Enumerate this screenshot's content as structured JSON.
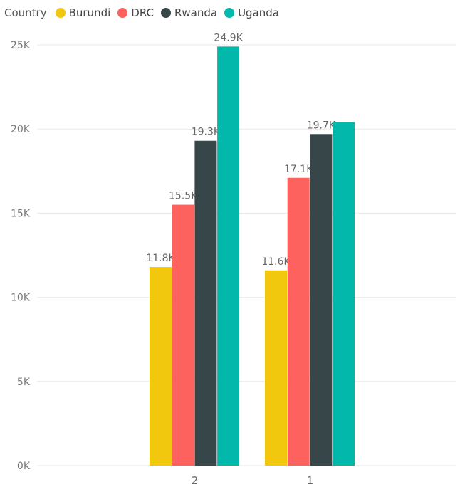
{
  "chart_data": {
    "type": "bar",
    "legend_title": "Country",
    "legend_position": "top-left",
    "categories": [
      "2",
      "1"
    ],
    "series": [
      {
        "name": "Burundi",
        "color": "#F2C80F",
        "values": [
          11800,
          11600
        ],
        "labels": [
          "11.8K",
          "11.6K"
        ]
      },
      {
        "name": "DRC",
        "color": "#FD625E",
        "values": [
          15500,
          17100
        ],
        "labels": [
          "15.5K",
          "17.1K"
        ]
      },
      {
        "name": "Rwanda",
        "color": "#374649",
        "values": [
          19300,
          19700
        ],
        "labels": [
          "19.3K",
          "19.7K"
        ]
      },
      {
        "name": "Uganda",
        "color": "#01B8AA",
        "values": [
          24900,
          20400
        ],
        "labels": [
          "24.9K",
          ""
        ]
      }
    ],
    "ylim": [
      0,
      25000
    ],
    "yticks": [
      0,
      5000,
      10000,
      15000,
      20000,
      25000
    ],
    "ytick_labels": [
      "0K",
      "5K",
      "10K",
      "15K",
      "20K",
      "25K"
    ],
    "grid": true,
    "xlabel": "",
    "ylabel": ""
  }
}
